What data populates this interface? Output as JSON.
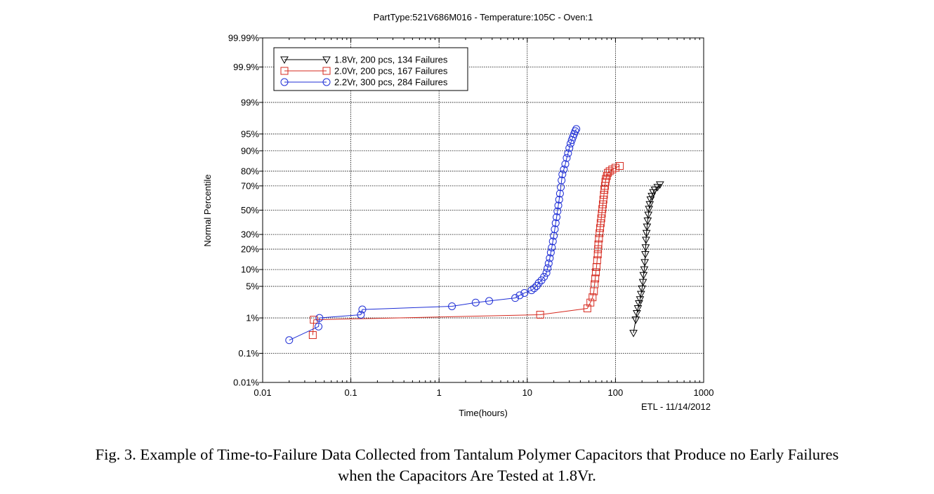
{
  "chart_data": {
    "type": "scatter",
    "title": "PartType:521V686M016 - Temperature:105C - Oven:1",
    "xlabel": "Time(hours)",
    "ylabel": "Normal Percentile",
    "x_scale": "log",
    "y_scale": "normal-probability",
    "xlim": [
      0.01,
      1000
    ],
    "ylim_percent": [
      0.01,
      99.99
    ],
    "x_ticks": [
      0.01,
      0.1,
      1,
      10,
      100,
      1000
    ],
    "x_tick_labels": [
      "0.01",
      "0.1",
      "1",
      "10",
      "100",
      "1000"
    ],
    "y_ticks": [
      0.01,
      0.1,
      1,
      5,
      10,
      20,
      30,
      50,
      70,
      80,
      90,
      95,
      99,
      99.9,
      99.99
    ],
    "y_tick_labels": [
      "0.01%",
      "0.1%",
      "1%",
      "5%",
      "10%",
      "20%",
      "30%",
      "50%",
      "70%",
      "80%",
      "90%",
      "95%",
      "99%",
      "99.9%",
      "99.99%"
    ],
    "grid": true,
    "legend_position": "top-left",
    "footnote": "ETL - 11/14/2012",
    "series": [
      {
        "name": "1.8Vr, 200 pcs, 134 Failures",
        "color": "#000000",
        "marker": "triangle-down",
        "points": [
          [
            160,
            0.4
          ],
          [
            170,
            0.9
          ],
          [
            175,
            1.3
          ],
          [
            180,
            1.7
          ],
          [
            185,
            2.2
          ],
          [
            190,
            2.7
          ],
          [
            195,
            3.5
          ],
          [
            200,
            4.5
          ],
          [
            205,
            6
          ],
          [
            208,
            8
          ],
          [
            212,
            10
          ],
          [
            215,
            13
          ],
          [
            218,
            17
          ],
          [
            220,
            21
          ],
          [
            222,
            26
          ],
          [
            225,
            31
          ],
          [
            228,
            36
          ],
          [
            232,
            41
          ],
          [
            236,
            46
          ],
          [
            240,
            51
          ],
          [
            245,
            55
          ],
          [
            250,
            59
          ],
          [
            258,
            62
          ],
          [
            268,
            65
          ],
          [
            280,
            67
          ],
          [
            300,
            69
          ],
          [
            320,
            71
          ]
        ]
      },
      {
        "name": "2.0Vr, 200 pcs, 167 Failures",
        "color": "#d62a1f",
        "marker": "square",
        "points": [
          [
            0.037,
            0.35
          ],
          [
            0.038,
            0.9
          ],
          [
            14,
            1.2
          ],
          [
            48,
            1.7
          ],
          [
            52,
            2.3
          ],
          [
            55,
            3
          ],
          [
            57,
            4
          ],
          [
            58,
            5.5
          ],
          [
            59,
            7
          ],
          [
            60,
            9
          ],
          [
            61,
            11
          ],
          [
            62,
            14
          ],
          [
            63,
            17
          ],
          [
            63.5,
            20
          ],
          [
            64,
            23
          ],
          [
            65,
            27
          ],
          [
            66,
            31
          ],
          [
            67,
            35
          ],
          [
            68,
            39
          ],
          [
            69,
            43
          ],
          [
            70,
            47
          ],
          [
            71,
            51
          ],
          [
            72,
            55
          ],
          [
            73,
            59
          ],
          [
            74,
            63
          ],
          [
            75,
            67
          ],
          [
            76,
            70
          ],
          [
            77,
            73
          ],
          [
            78,
            75
          ],
          [
            80,
            77
          ],
          [
            82,
            79
          ],
          [
            86,
            80
          ],
          [
            92,
            81
          ],
          [
            100,
            82
          ],
          [
            112,
            83
          ]
        ]
      },
      {
        "name": "2.2Vr, 300 pcs, 284 Failures",
        "color": "#1f2fd6",
        "marker": "circle",
        "points": [
          [
            0.02,
            0.25
          ],
          [
            0.043,
            0.6
          ],
          [
            0.044,
            1
          ],
          [
            0.13,
            1.2
          ],
          [
            0.135,
            1.6
          ],
          [
            1.4,
            1.9
          ],
          [
            2.6,
            2.3
          ],
          [
            3.7,
            2.5
          ],
          [
            7.3,
            2.9
          ],
          [
            8.2,
            3.3
          ],
          [
            9.3,
            3.7
          ],
          [
            11.2,
            4.2
          ],
          [
            12,
            4.6
          ],
          [
            12.8,
            5.1
          ],
          [
            13.5,
            5.8
          ],
          [
            14.5,
            6.5
          ],
          [
            15.5,
            7.5
          ],
          [
            16.5,
            8.8
          ],
          [
            17,
            10.5
          ],
          [
            17.5,
            12.5
          ],
          [
            18,
            15
          ],
          [
            18.5,
            18
          ],
          [
            19,
            21
          ],
          [
            19.5,
            25
          ],
          [
            20,
            29
          ],
          [
            20.5,
            34
          ],
          [
            21,
            39
          ],
          [
            21.5,
            44
          ],
          [
            22,
            49
          ],
          [
            22.5,
            54
          ],
          [
            23,
            59
          ],
          [
            23.5,
            64
          ],
          [
            24,
            69
          ],
          [
            24.5,
            74
          ],
          [
            25,
            78
          ],
          [
            26,
            81
          ],
          [
            27,
            84
          ],
          [
            28,
            87
          ],
          [
            29,
            89
          ],
          [
            30,
            91
          ],
          [
            31,
            92.5
          ],
          [
            32,
            93.5
          ],
          [
            33,
            94.3
          ],
          [
            34,
            95
          ],
          [
            35,
            95.6
          ],
          [
            36,
            96
          ]
        ]
      }
    ]
  },
  "caption": {
    "line1": "Fig. 3.  Example of Time-to-Failure Data Collected from Tantalum Polymer Capacitors that Produce no Early Failures",
    "line2": "when the Capacitors Are Tested at 1.8Vr."
  }
}
